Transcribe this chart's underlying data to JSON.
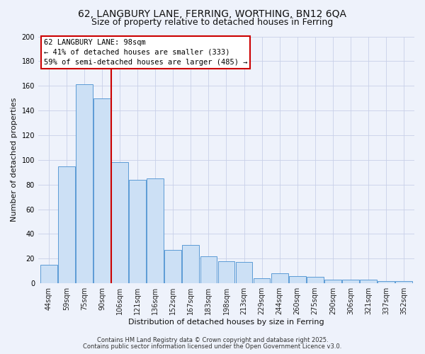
{
  "title": "62, LANGBURY LANE, FERRING, WORTHING, BN12 6QA",
  "subtitle": "Size of property relative to detached houses in Ferring",
  "xlabel": "Distribution of detached houses by size in Ferring",
  "ylabel": "Number of detached properties",
  "categories": [
    "44sqm",
    "59sqm",
    "75sqm",
    "90sqm",
    "106sqm",
    "121sqm",
    "136sqm",
    "152sqm",
    "167sqm",
    "183sqm",
    "198sqm",
    "213sqm",
    "229sqm",
    "244sqm",
    "260sqm",
    "275sqm",
    "290sqm",
    "306sqm",
    "321sqm",
    "337sqm",
    "352sqm"
  ],
  "values": [
    15,
    95,
    161,
    150,
    98,
    84,
    85,
    27,
    31,
    22,
    18,
    17,
    4,
    8,
    6,
    5,
    3,
    3,
    3,
    2,
    2
  ],
  "bar_color": "#cce0f5",
  "bar_edge_color": "#5b9bd5",
  "background_color": "#eef2fb",
  "grid_color": "#c8d0e8",
  "vline_x": 3.5,
  "vline_color": "#cc0000",
  "annotation_line1": "62 LANGBURY LANE: 98sqm",
  "annotation_line2": "← 41% of detached houses are smaller (333)",
  "annotation_line3": "59% of semi-detached houses are larger (485) →",
  "ylim": [
    0,
    200
  ],
  "yticks": [
    0,
    20,
    40,
    60,
    80,
    100,
    120,
    140,
    160,
    180,
    200
  ],
  "footer1": "Contains HM Land Registry data © Crown copyright and database right 2025.",
  "footer2": "Contains public sector information licensed under the Open Government Licence v3.0.",
  "title_fontsize": 10,
  "subtitle_fontsize": 9,
  "axis_label_fontsize": 8,
  "tick_fontsize": 7,
  "annotation_fontsize": 7.5,
  "footer_fontsize": 6
}
